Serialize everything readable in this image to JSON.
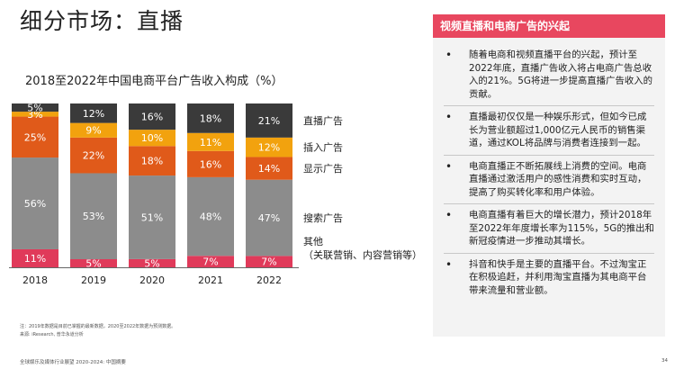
{
  "page_title": "细分市场：直播",
  "chart_data": {
    "type": "bar",
    "stacked": true,
    "title": "2018至2022年中国电商平台广告收入构成（%）",
    "categories": [
      "2018",
      "2019",
      "2020",
      "2021",
      "2022"
    ],
    "series": [
      {
        "name": "其他（关联营销、内容营销等）",
        "label_lines": [
          "其他",
          "（关联营销、内容营销等）"
        ],
        "values": [
          11,
          5,
          5,
          7,
          7
        ],
        "color": "#e03a5a"
      },
      {
        "name": "搜索广告",
        "label_lines": [
          "搜索广告"
        ],
        "values": [
          56,
          53,
          51,
          48,
          47
        ],
        "color": "#8c8c8c"
      },
      {
        "name": "显示广告",
        "label_lines": [
          "显示广告"
        ],
        "values": [
          25,
          22,
          18,
          16,
          14
        ],
        "color": "#e05a1a"
      },
      {
        "name": "插入广告",
        "label_lines": [
          "插入广告"
        ],
        "values": [
          3,
          9,
          10,
          11,
          12
        ],
        "color": "#f2a20e"
      },
      {
        "name": "直播广告",
        "label_lines": [
          "直播广告"
        ],
        "values": [
          5,
          12,
          16,
          18,
          21
        ],
        "color": "#3a3a3a"
      }
    ],
    "legend_placement": "right",
    "grid": false
  },
  "footnotes": [
    "注：2019年数据是目前已掌握的最新数据，2020至2022年数据为预测数据。",
    "来源: iResearch, 普华永道分析"
  ],
  "footer": {
    "report_name": "全球娱乐及媒体行业展望 2020-2024: 中国摘要",
    "page_number": "34"
  },
  "panel": {
    "heading": "视频直播和电商广告的兴起",
    "bullets": [
      "随着电商和视频直播平台的兴起，预计至2022年底，直播广告收入将占电商广告总收入的21%。5G将进一步提高直播广告收入的贡献。",
      "直播最初仅仅是一种娱乐形式，但如今已成长为营业额超过1,000亿元人民币的销售渠道，通过KOL将品牌与消费者连接到一起。",
      "电商直播正不断拓展线上消费的空间。电商直播通过激活用户的感性消费和实时互动，提高了购买转化率和用户体验。",
      "电商直播有着巨大的增长潜力，预计2018年至2022年年度增长率为115%，5G的推出和新冠疫情进一步推动其增长。",
      "抖音和快手是主要的直播平台。不过淘宝正在积极追赶，并利用淘宝直播为其电商平台带来流量和营业额。"
    ]
  }
}
